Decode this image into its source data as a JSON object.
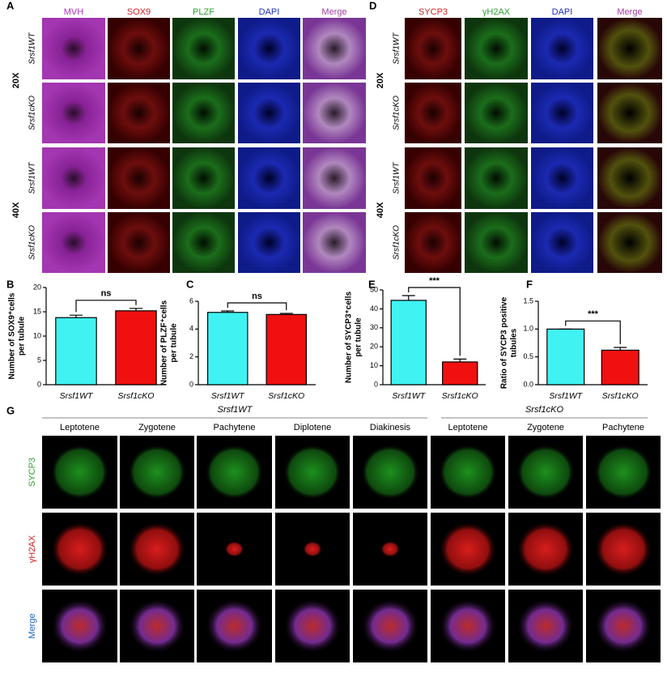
{
  "panel_a": {
    "letter": "A",
    "headers": [
      "MVH",
      "SOX9",
      "PLZF",
      "DAPI",
      "Merge"
    ],
    "magnifications": [
      "20X",
      "40X"
    ],
    "rows": [
      "Srsf1WT",
      "Srsf1cKO",
      "Srsf1WT",
      "Srsf1cKO"
    ]
  },
  "panel_d": {
    "letter": "D",
    "headers": [
      "SYCP3",
      "γH2AX",
      "DAPI",
      "Merge"
    ],
    "magnifications": [
      "20X",
      "40X"
    ],
    "rows": [
      "Srsf1WT",
      "Srsf1cKO",
      "Srsf1WT",
      "Srsf1cKO"
    ]
  },
  "chart_data": [
    {
      "type": "bar",
      "letter": "B",
      "ylabel": [
        "Number of SOX9⁺cells",
        "per tubule"
      ],
      "categories": [
        "Srsf1WT",
        "Srsf1cKO"
      ],
      "values": [
        13.8,
        15.2
      ],
      "errors": [
        0.5,
        0.5
      ],
      "colors": [
        "#40f2f2",
        "#f01010"
      ],
      "ylim": [
        0,
        20
      ],
      "yticks": [
        0,
        5,
        10,
        15,
        20
      ],
      "annotation": "ns"
    },
    {
      "type": "bar",
      "letter": "C",
      "ylabel": [
        "Number of PLZF⁺cells",
        "per tubule"
      ],
      "categories": [
        "Srsf1WT",
        "Srsf1cKO"
      ],
      "values": [
        5.2,
        5.05
      ],
      "errors": [
        0.1,
        0.08
      ],
      "colors": [
        "#40f2f2",
        "#f01010"
      ],
      "ylim": [
        0,
        6
      ],
      "yticks": [
        0,
        2,
        4,
        6
      ],
      "annotation": "ns"
    },
    {
      "type": "bar",
      "letter": "E",
      "ylabel": [
        "Number of SYCP3⁺cells",
        "per tubule"
      ],
      "categories": [
        "Srsf1WT",
        "Srsf1cKO"
      ],
      "values": [
        44.5,
        12
      ],
      "errors": [
        2.5,
        1.5
      ],
      "colors": [
        "#40f2f2",
        "#f01010"
      ],
      "ylim": [
        0,
        50
      ],
      "yticks": [
        0,
        10,
        20,
        30,
        40,
        50
      ],
      "annotation": "***"
    },
    {
      "type": "bar",
      "letter": "F",
      "ylabel": [
        "Ratio of SYCP3 positive",
        "tubules"
      ],
      "categories": [
        "Srsf1WT",
        "Srsf1cKO"
      ],
      "values": [
        1.0,
        0.62
      ],
      "errors": [
        0,
        0.05
      ],
      "colors": [
        "#40f2f2",
        "#f01010"
      ],
      "ylim": [
        0,
        1.5
      ],
      "yticks": [
        {
          "value": 0,
          "label": "0.0"
        },
        0.5,
        {
          "value": 1,
          "label": "1.0"
        },
        1.5
      ],
      "annotation": "***"
    }
  ],
  "panel_g": {
    "letter": "G",
    "groups": [
      "Srsf1WT",
      "Srsf1cKO"
    ],
    "stages": [
      "Leptotene",
      "Zygotene",
      "Pachytene",
      "Diplotene",
      "Diakinesis",
      "Leptotene",
      "Zygotene",
      "Pachytene"
    ],
    "channels": [
      "SYCP3",
      "γH2AX",
      "Merge"
    ]
  }
}
